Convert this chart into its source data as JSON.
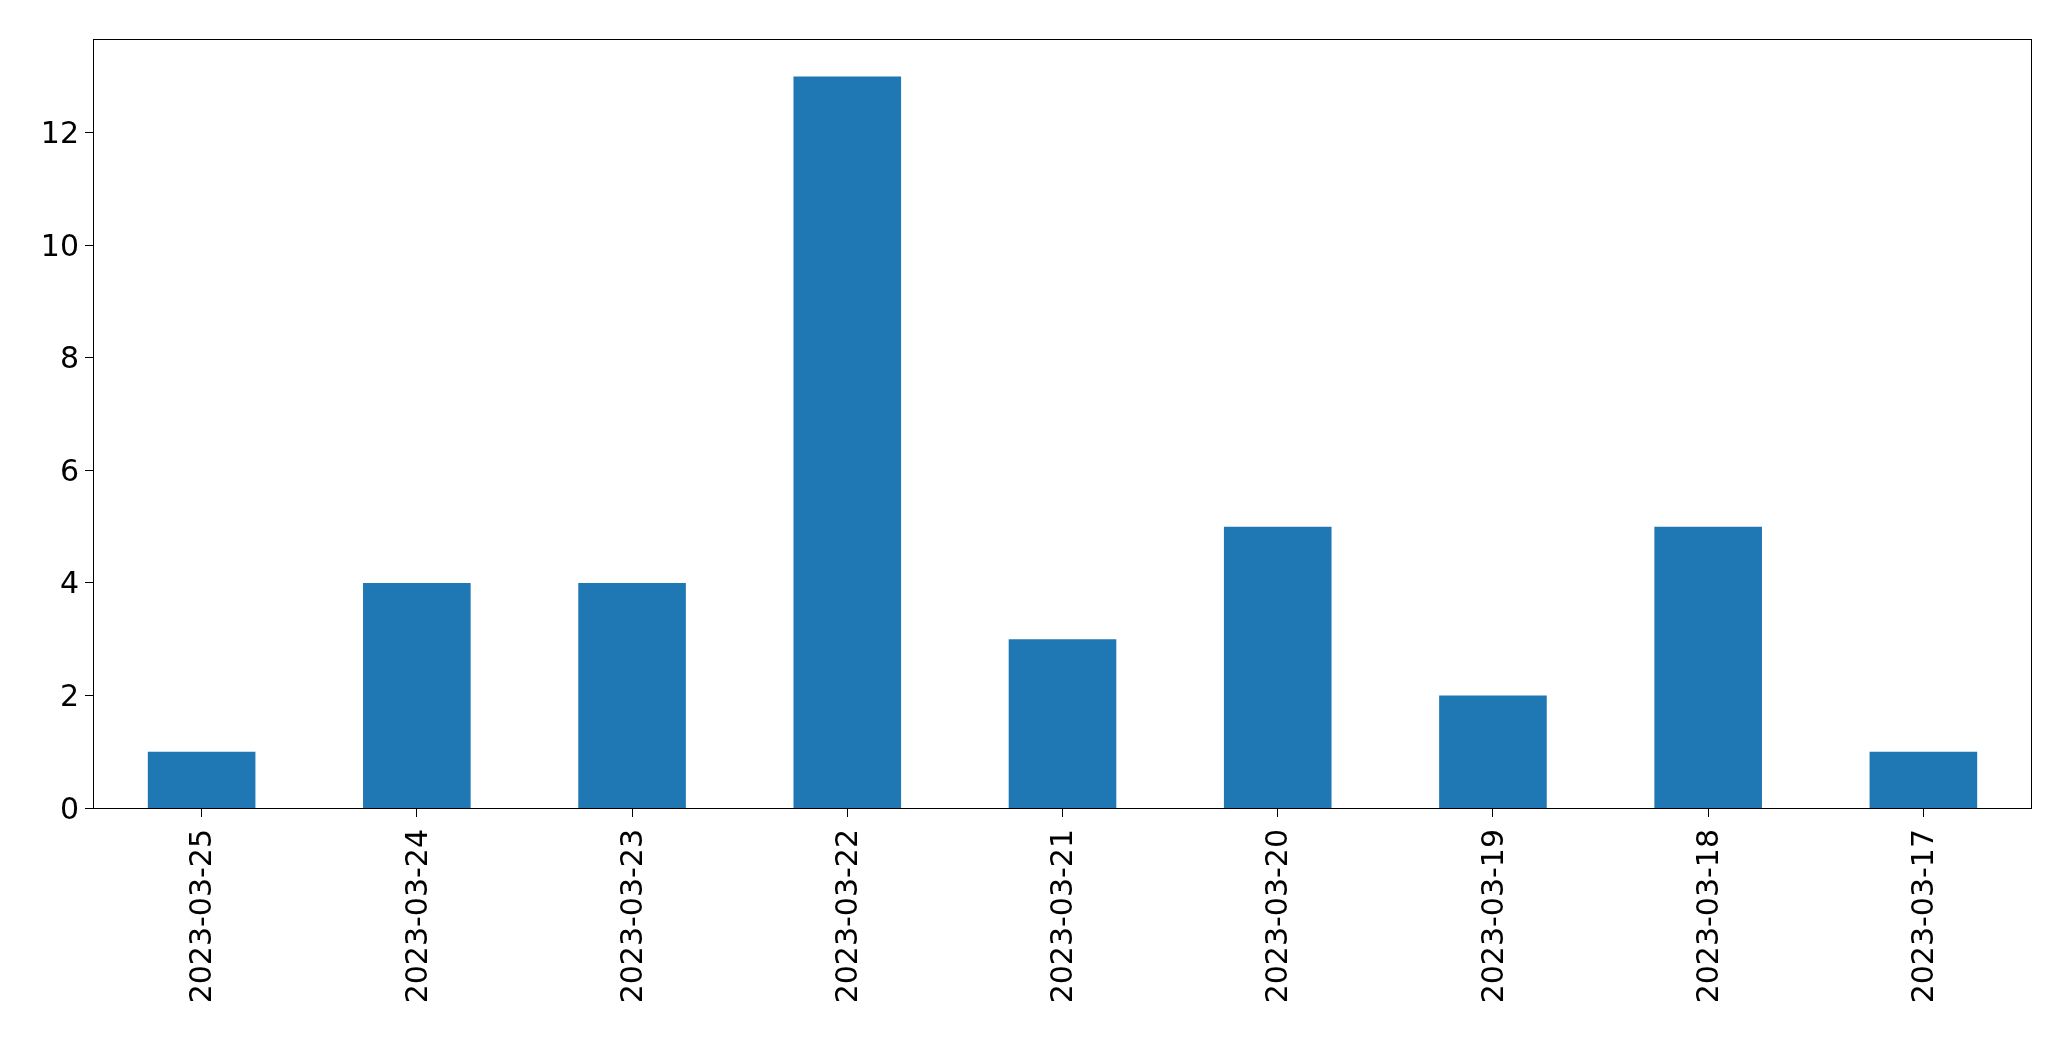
{
  "chart_data": {
    "type": "bar",
    "categories": [
      "2023-03-25",
      "2023-03-24",
      "2023-03-23",
      "2023-03-22",
      "2023-03-21",
      "2023-03-20",
      "2023-03-19",
      "2023-03-18",
      "2023-03-17"
    ],
    "values": [
      1,
      4,
      4,
      13,
      3,
      5,
      2,
      5,
      1
    ],
    "color": "#1f77b4",
    "ylim": [
      0,
      13.65
    ],
    "yticks": [
      0,
      2,
      4,
      6,
      8,
      10,
      12
    ]
  }
}
